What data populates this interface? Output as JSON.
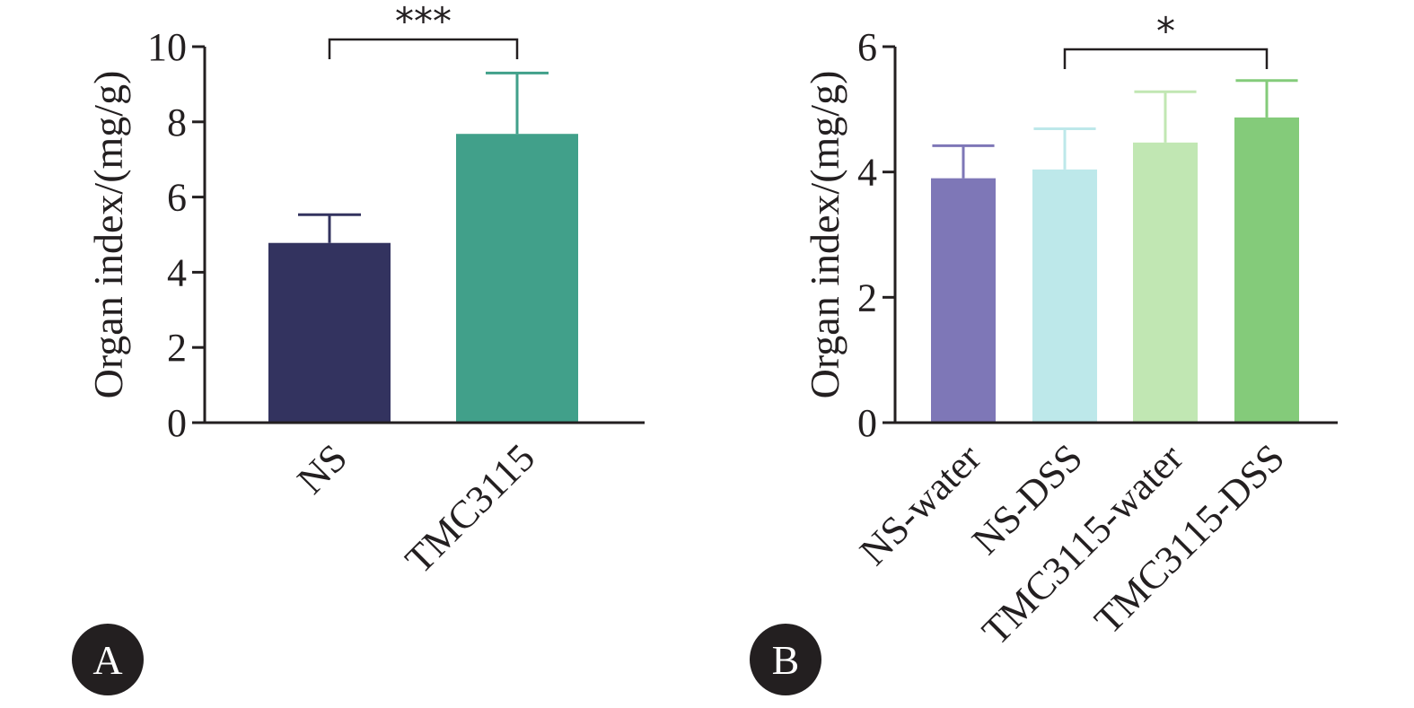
{
  "chart_data": [
    {
      "panel_label": "A",
      "type": "bar",
      "ylabel": "Organ index/(mg/g)",
      "ylim": [
        0,
        10
      ],
      "yticks": [
        0,
        2,
        4,
        6,
        8,
        10
      ],
      "ytick_labels": [
        "0",
        "2",
        "4",
        "6",
        "8",
        "10"
      ],
      "categories": [
        "NS",
        "TMC3115"
      ],
      "values": [
        4.78,
        7.68
      ],
      "errors": [
        0.75,
        1.62
      ],
      "colors": [
        "#33335f",
        "#41a08a"
      ],
      "significance": [
        {
          "from": 0,
          "to": 1,
          "label": "***"
        }
      ],
      "grid": false
    },
    {
      "panel_label": "B",
      "type": "bar",
      "ylabel": "Organ index/(mg/g)",
      "ylim": [
        0,
        6
      ],
      "yticks": [
        0,
        2,
        4,
        6
      ],
      "ytick_labels": [
        "0",
        "2",
        "4",
        "6"
      ],
      "categories": [
        "NS-water",
        "NS-DSS",
        "TMC3115-water",
        "TMC3115-DSS"
      ],
      "values": [
        3.9,
        4.04,
        4.47,
        4.87
      ],
      "errors": [
        0.52,
        0.65,
        0.81,
        0.59
      ],
      "colors": [
        "#7e77b7",
        "#bde8ea",
        "#c1e7b3",
        "#84cb7a"
      ],
      "significance": [
        {
          "from": 1,
          "to": 3,
          "label": "*"
        }
      ],
      "grid": false
    }
  ]
}
